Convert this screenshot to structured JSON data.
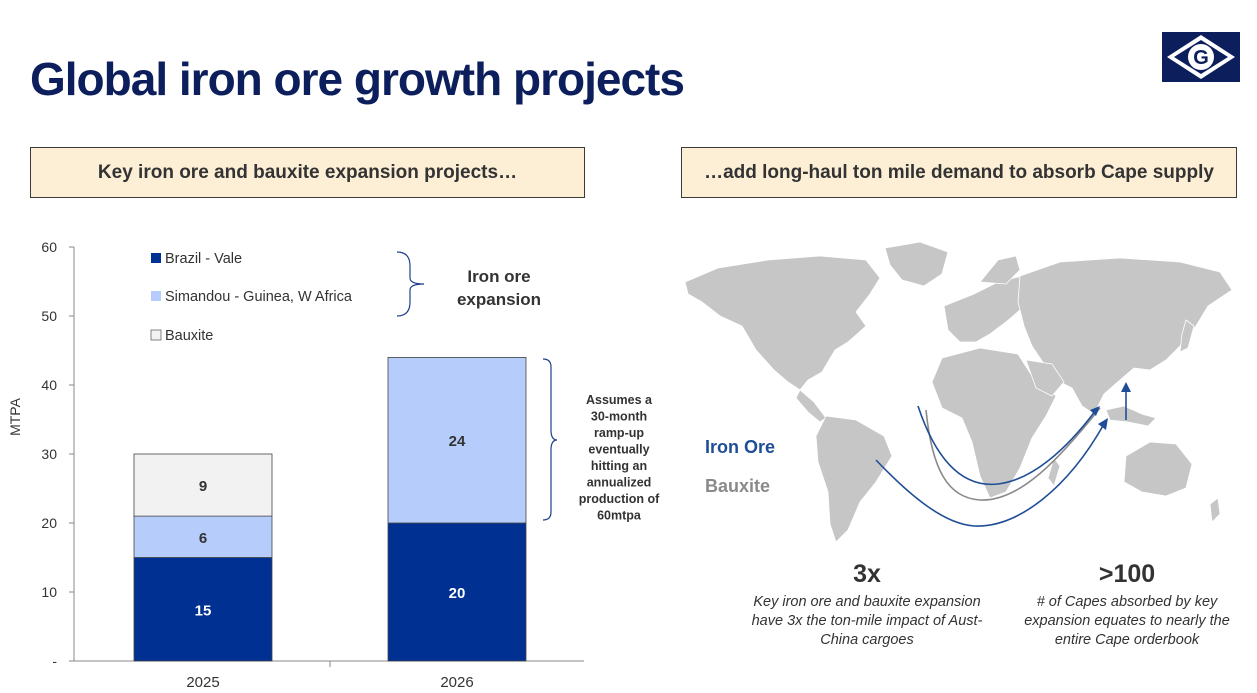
{
  "title": "Global iron ore growth projects",
  "left_callout": "Key iron ore and bauxite expansion projects…",
  "right_callout": "…add long-haul ton mile demand to absorb Cape supply",
  "logo_letter": "G",
  "chart_data": {
    "type": "bar",
    "stacked": true,
    "categories": [
      "2025",
      "2026"
    ],
    "series": [
      {
        "name": "Brazil - Vale",
        "values": [
          15,
          20
        ],
        "color": "#003192"
      },
      {
        "name": "Simandou - Guinea, W Africa",
        "values": [
          6,
          24
        ],
        "color": "#b6cdfb"
      },
      {
        "name": "Bauxite",
        "values": [
          9,
          0
        ],
        "color": "#f2f2f2"
      }
    ],
    "ylabel": "MTPA",
    "ylim": [
      0,
      60
    ],
    "yticks": [
      "-",
      "10",
      "20",
      "30",
      "40",
      "50",
      "60"
    ],
    "legend_bracket_label": "Iron ore expansion",
    "annotation": "Assumes a 30-month ramp-up eventually hitting an annualized production of 60mtpa"
  },
  "map": {
    "legend": {
      "iron_ore": "Iron Ore",
      "bauxite": "Bauxite"
    },
    "colors": {
      "land": "#c6c6c6",
      "iron_ore": "#1f4e96",
      "bauxite": "#8a8a8a"
    }
  },
  "stats": [
    {
      "value": "3x",
      "text": "Key iron ore and bauxite expansion have 3x the ton-mile impact of Aust-China cargoes"
    },
    {
      "value": ">100",
      "text": "# of Capes absorbed by key expansion equates to nearly the entire Cape orderbook"
    }
  ]
}
